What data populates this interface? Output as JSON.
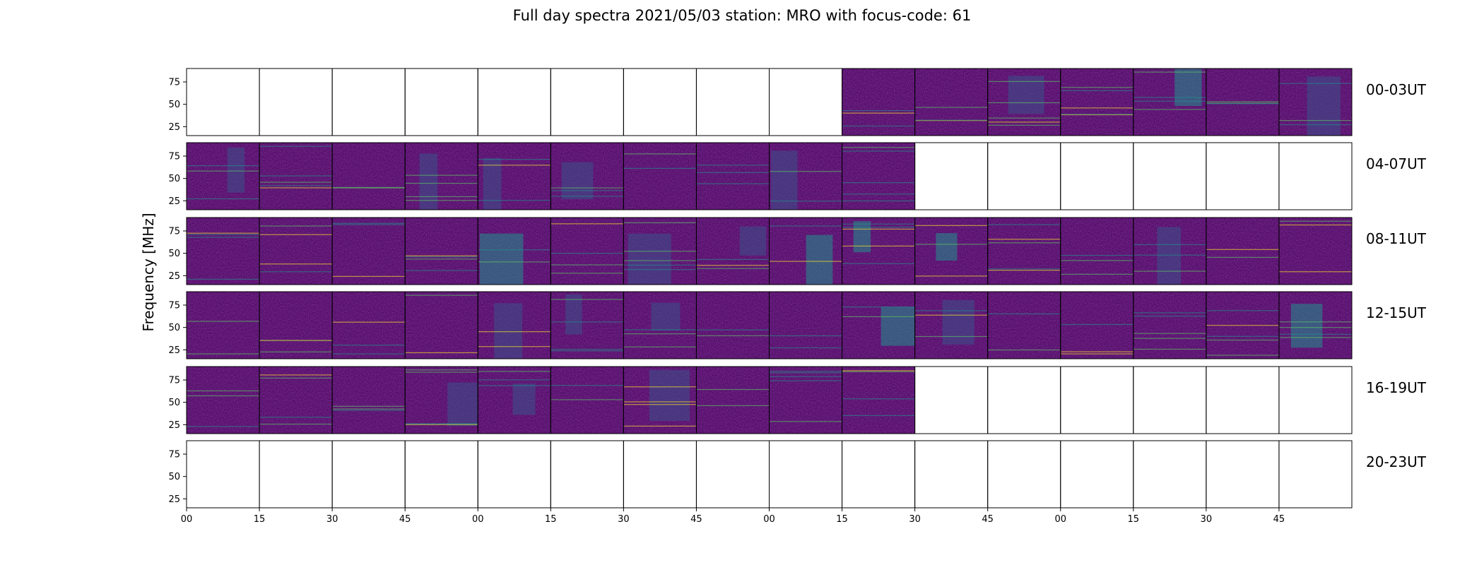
{
  "title": "Full day spectra 2021/05/03 station: MRO with focus-code: 61",
  "chart_data": {
    "type": "heatmap",
    "title": "Full day spectra 2021/05/03 station: MRO with focus-code: 61",
    "ylabel": "Frequency [MHz]",
    "ylim": [
      15,
      90
    ],
    "y_ticks": [
      25,
      50,
      75
    ],
    "x_ticks": [
      "00",
      "15",
      "30",
      "45",
      "00",
      "15",
      "30",
      "45",
      "00",
      "15",
      "30",
      "45",
      "00",
      "15",
      "30",
      "45"
    ],
    "rows": [
      {
        "label": "00-03UT",
        "data_from_panel": 10,
        "data_to_panel": 16
      },
      {
        "label": "04-07UT",
        "data_from_panel": 1,
        "data_to_panel": 10
      },
      {
        "label": "08-11UT",
        "data_from_panel": 1,
        "data_to_panel": 16
      },
      {
        "label": "12-15UT",
        "data_from_panel": 1,
        "data_to_panel": 16
      },
      {
        "label": "16-19UT",
        "data_from_panel": 1,
        "data_to_panel": 10
      },
      {
        "label": "20-23UT",
        "data_from_panel": 0,
        "data_to_panel": 0
      }
    ],
    "panels_per_row": 16,
    "colormap": [
      "#440154",
      "#3b528b",
      "#21918c",
      "#5ec962",
      "#fde725"
    ]
  }
}
